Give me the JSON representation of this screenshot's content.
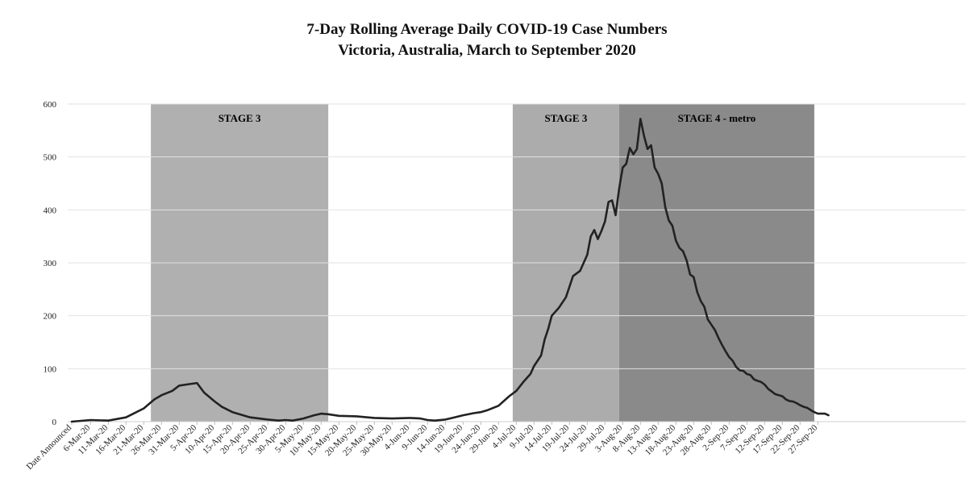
{
  "chart_data": {
    "type": "line",
    "title": "7-Day Rolling Average Daily COVID-19 Case Numbers",
    "subtitle": "Victoria, Australia, March to September 2020",
    "xlabel": "",
    "ylabel": "",
    "ylim": [
      0,
      600
    ],
    "yticks": [
      0,
      100,
      200,
      300,
      400,
      500,
      600
    ],
    "grid": true,
    "x_tick_labels": [
      "Date Announced",
      "6-Mar-20",
      "11-Mar-20",
      "16-Mar-20",
      "21-Mar-20",
      "26-Mar-20",
      "31-Mar-20",
      "5-Apr-20",
      "10-Apr-20",
      "15-Apr-20",
      "20-Apr-20",
      "25-Apr-20",
      "30-Apr-20",
      "5-May-20",
      "10-May-20",
      "15-May-20",
      "20-May-20",
      "25-May-20",
      "30-May-20",
      "4-Jun-20",
      "9-Jun-20",
      "14-Jun-20",
      "19-Jun-20",
      "24-Jun-20",
      "29-Jun-20",
      "4-Jul-20",
      "9-Jul-20",
      "14-Jul-20",
      "19-Jul-20",
      "24-Jul-20",
      "29-Jul-20",
      "3-Aug-20",
      "8-Aug-20",
      "13-Aug-20",
      "18-Aug-20",
      "23-Aug-20",
      "28-Aug-20",
      "2-Sep-20",
      "7-Sep-20",
      "12-Sep-20",
      "17-Sep-20",
      "22-Sep-20",
      "27-Sep-20"
    ],
    "bands": [
      {
        "label": "STAGE 3",
        "start": "23-Mar-20",
        "end": "12-May-20",
        "color": "#b0b0b0"
      },
      {
        "label": "STAGE 3",
        "start": "3-Jul-20",
        "end": "2-Aug-20",
        "color": "#acacac"
      },
      {
        "label": "STAGE 4 - metro",
        "start": "2-Aug-20",
        "end": "26-Sep-20",
        "color": "#8a8a8a"
      }
    ],
    "series": [
      {
        "points": [
          [
            "Date Announced",
            0
          ],
          [
            "6-Mar-20",
            3
          ],
          [
            "11-Mar-20",
            2
          ],
          [
            "16-Mar-20",
            8
          ],
          [
            "21-Mar-20",
            25
          ],
          [
            "24-Mar-20",
            42
          ],
          [
            "26-Mar-20",
            50
          ],
          [
            "29-Mar-20",
            58
          ],
          [
            "31-Mar-20",
            68
          ],
          [
            "2-Apr-20",
            70
          ],
          [
            "5-Apr-20",
            73
          ],
          [
            "7-Apr-20",
            55
          ],
          [
            "10-Apr-20",
            38
          ],
          [
            "12-Apr-20",
            28
          ],
          [
            "15-Apr-20",
            18
          ],
          [
            "18-Apr-20",
            12
          ],
          [
            "20-Apr-20",
            8
          ],
          [
            "25-Apr-20",
            4
          ],
          [
            "28-Apr-20",
            2
          ],
          [
            "30-Apr-20",
            3
          ],
          [
            "2-May-20",
            2
          ],
          [
            "5-May-20",
            6
          ],
          [
            "8-May-20",
            12
          ],
          [
            "10-May-20",
            15
          ],
          [
            "12-May-20",
            14
          ],
          [
            "15-May-20",
            11
          ],
          [
            "20-May-20",
            10
          ],
          [
            "25-May-20",
            7
          ],
          [
            "30-May-20",
            6
          ],
          [
            "4-Jun-20",
            7
          ],
          [
            "7-Jun-20",
            6
          ],
          [
            "9-Jun-20",
            3
          ],
          [
            "11-Jun-20",
            2
          ],
          [
            "14-Jun-20",
            4
          ],
          [
            "16-Jun-20",
            7
          ],
          [
            "19-Jun-20",
            12
          ],
          [
            "22-Jun-20",
            16
          ],
          [
            "24-Jun-20",
            18
          ],
          [
            "26-Jun-20",
            22
          ],
          [
            "29-Jun-20",
            30
          ],
          [
            "2-Jul-20",
            48
          ],
          [
            "4-Jul-20",
            58
          ],
          [
            "6-Jul-20",
            75
          ],
          [
            "8-Jul-20",
            90
          ],
          [
            "9-Jul-20",
            105
          ],
          [
            "11-Jul-20",
            125
          ],
          [
            "12-Jul-20",
            155
          ],
          [
            "13-Jul-20",
            175
          ],
          [
            "14-Jul-20",
            200
          ],
          [
            "16-Jul-20",
            215
          ],
          [
            "18-Jul-20",
            235
          ],
          [
            "19-Jul-20",
            255
          ],
          [
            "20-Jul-20",
            275
          ],
          [
            "22-Jul-20",
            285
          ],
          [
            "24-Jul-20",
            315
          ],
          [
            "25-Jul-20",
            350
          ],
          [
            "26-Jul-20",
            362
          ],
          [
            "27-Jul-20",
            345
          ],
          [
            "28-Jul-20",
            360
          ],
          [
            "29-Jul-20",
            378
          ],
          [
            "30-Jul-20",
            415
          ],
          [
            "31-Jul-20",
            418
          ],
          [
            "1-Aug-20",
            390
          ],
          [
            "2-Aug-20",
            440
          ],
          [
            "3-Aug-20",
            480
          ],
          [
            "4-Aug-20",
            487
          ],
          [
            "5-Aug-20",
            517
          ],
          [
            "6-Aug-20",
            505
          ],
          [
            "7-Aug-20",
            515
          ],
          [
            "8-Aug-20",
            572
          ],
          [
            "9-Aug-20",
            540
          ],
          [
            "10-Aug-20",
            515
          ],
          [
            "11-Aug-20",
            522
          ],
          [
            "12-Aug-20",
            480
          ],
          [
            "13-Aug-20",
            468
          ],
          [
            "14-Aug-20",
            450
          ],
          [
            "15-Aug-20",
            405
          ],
          [
            "16-Aug-20",
            380
          ],
          [
            "17-Aug-20",
            370
          ],
          [
            "18-Aug-20",
            342
          ],
          [
            "19-Aug-20",
            328
          ],
          [
            "20-Aug-20",
            322
          ],
          [
            "21-Aug-20",
            305
          ],
          [
            "22-Aug-20",
            278
          ],
          [
            "23-Aug-20",
            273
          ],
          [
            "24-Aug-20",
            245
          ],
          [
            "25-Aug-20",
            228
          ],
          [
            "26-Aug-20",
            217
          ],
          [
            "27-Aug-20",
            193
          ],
          [
            "28-Aug-20",
            183
          ],
          [
            "29-Aug-20",
            173
          ],
          [
            "30-Aug-20",
            158
          ],
          [
            "31-Aug-20",
            145
          ],
          [
            "1-Sep-20",
            133
          ],
          [
            "2-Sep-20",
            122
          ],
          [
            "3-Sep-20",
            115
          ],
          [
            "4-Sep-20",
            103
          ],
          [
            "5-Sep-20",
            97
          ],
          [
            "6-Sep-20",
            96
          ],
          [
            "7-Sep-20",
            90
          ],
          [
            "8-Sep-20",
            88
          ],
          [
            "9-Sep-20",
            80
          ],
          [
            "10-Sep-20",
            77
          ],
          [
            "11-Sep-20",
            75
          ],
          [
            "12-Sep-20",
            70
          ],
          [
            "13-Sep-20",
            62
          ],
          [
            "14-Sep-20",
            57
          ],
          [
            "15-Sep-20",
            52
          ],
          [
            "16-Sep-20",
            50
          ],
          [
            "17-Sep-20",
            48
          ],
          [
            "18-Sep-20",
            42
          ],
          [
            "19-Sep-20",
            39
          ],
          [
            "20-Sep-20",
            38
          ],
          [
            "21-Sep-20",
            35
          ],
          [
            "22-Sep-20",
            31
          ],
          [
            "23-Sep-20",
            28
          ],
          [
            "24-Sep-20",
            26
          ],
          [
            "25-Sep-20",
            22
          ],
          [
            "26-Sep-20",
            18
          ],
          [
            "27-Sep-20",
            15
          ],
          [
            "28-Sep-20",
            15
          ],
          [
            "29-Sep-20",
            15
          ],
          [
            "30-Sep-20",
            12
          ]
        ],
        "color": "#222222"
      }
    ],
    "legend": "none"
  }
}
